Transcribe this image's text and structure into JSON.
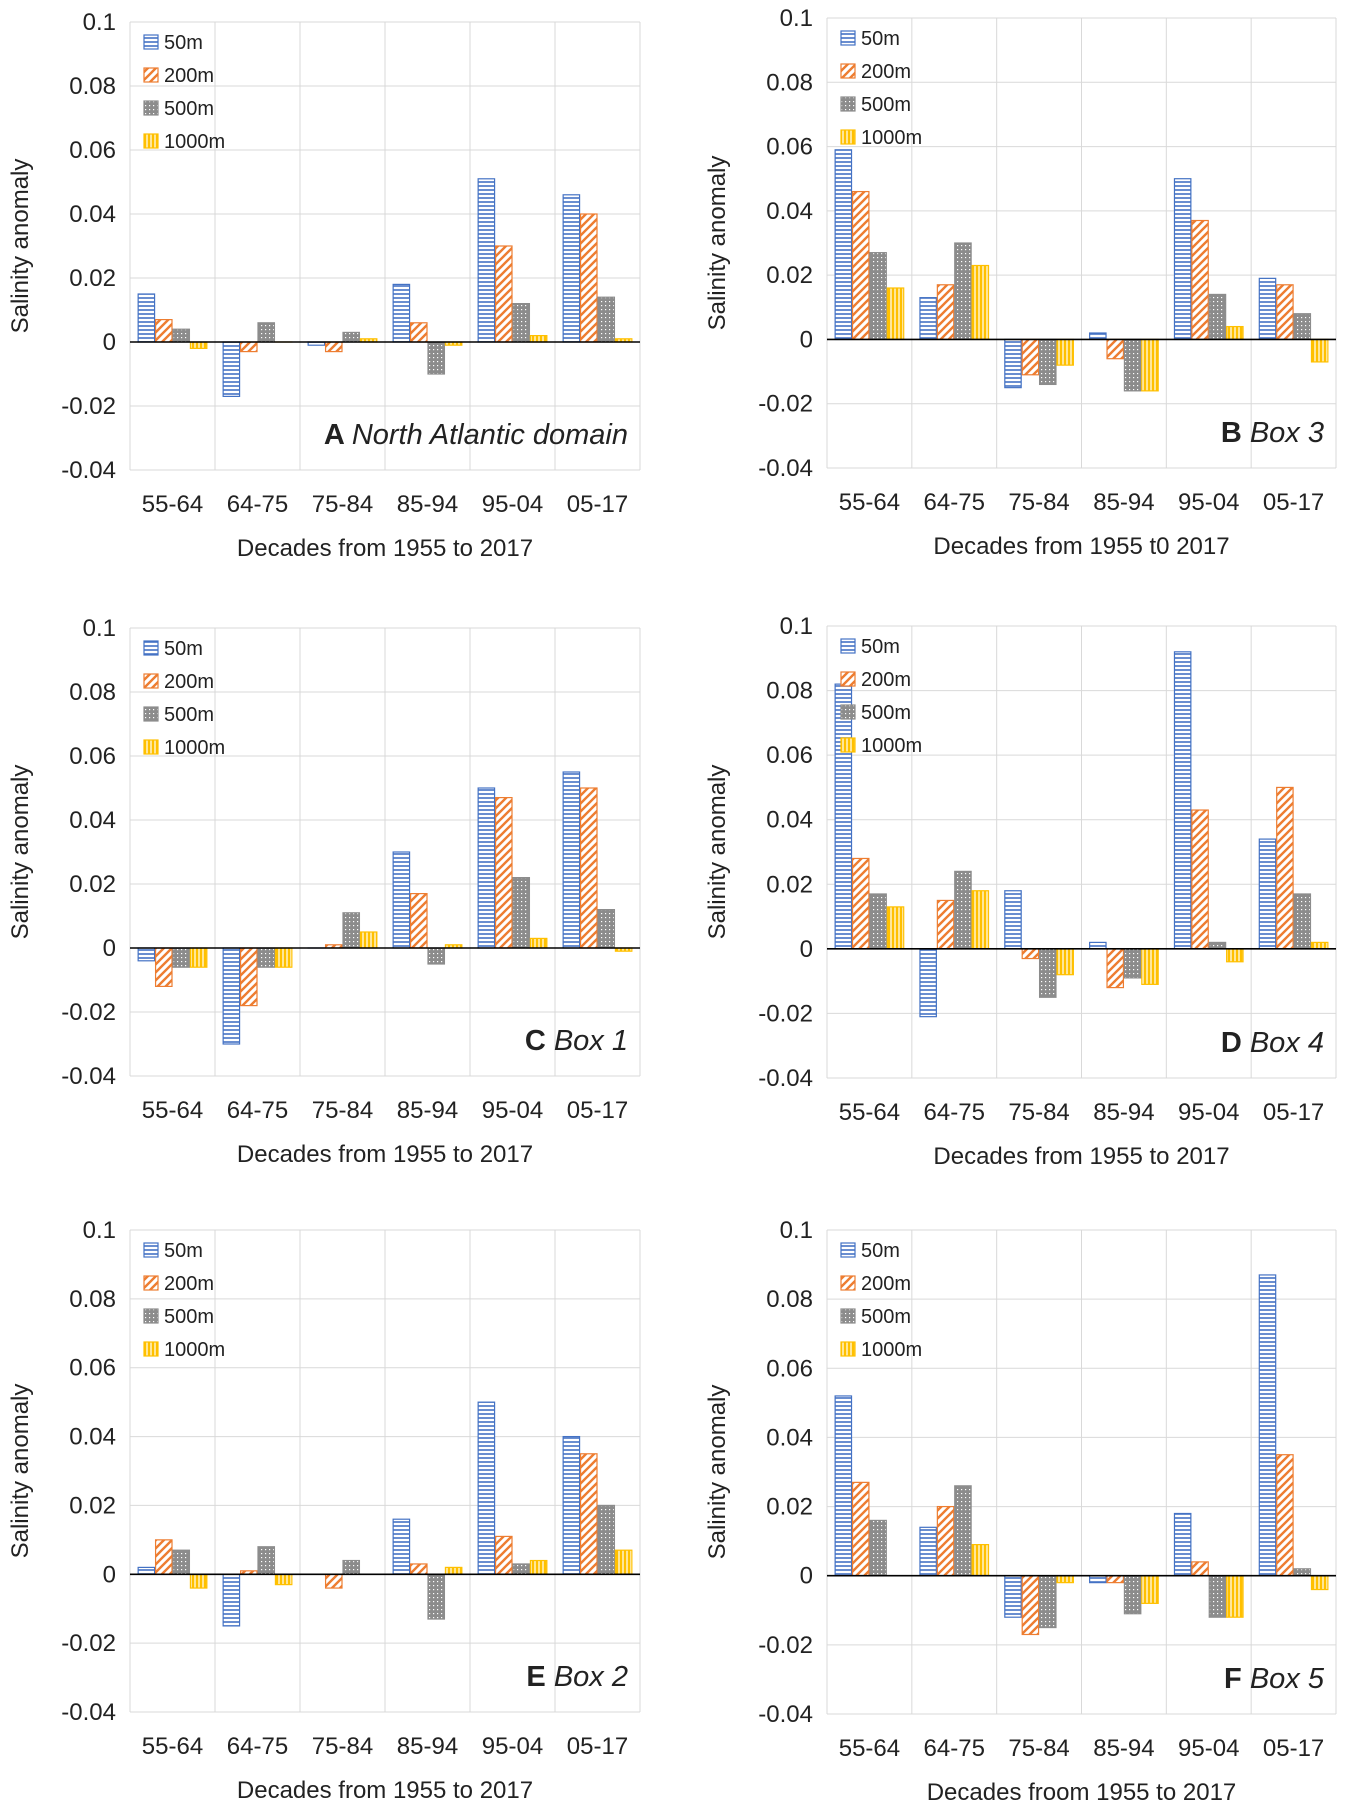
{
  "colors": {
    "series_50m": "#4472C4",
    "series_200m": "#ED7D31",
    "series_500m": "#8C8C8C",
    "series_1000m": "#FFC000",
    "grid": "#D9D9D9",
    "zero_line": "#000000"
  },
  "chart_data": [
    {
      "panel_letter": "A",
      "title": "North Atlantic domain",
      "type": "bar",
      "categories": [
        "55-64",
        "64-75",
        "75-84",
        "85-94",
        "95-04",
        "05-17"
      ],
      "xlabel": "Decades from 1955 to 2017",
      "ylabel": "Salinity anomaly",
      "ylim": [
        -0.04,
        0.1
      ],
      "yticks": [
        "0.1",
        "0.08",
        "0.06",
        "0.04",
        "0.02",
        "0",
        "-0.02",
        "-0.04"
      ],
      "legend": [
        "50m",
        "200m",
        "500m",
        "1000m"
      ],
      "series": [
        {
          "name": "50m",
          "values": [
            0.015,
            -0.017,
            -0.001,
            0.018,
            0.051,
            0.046
          ]
        },
        {
          "name": "200m",
          "values": [
            0.007,
            -0.003,
            -0.003,
            0.006,
            0.03,
            0.04
          ]
        },
        {
          "name": "500m",
          "values": [
            0.004,
            0.006,
            0.003,
            -0.01,
            0.012,
            0.014
          ]
        },
        {
          "name": "1000m",
          "values": [
            -0.002,
            0.0,
            0.001,
            -0.001,
            0.002,
            0.001
          ]
        }
      ]
    },
    {
      "panel_letter": "B",
      "title": "Box 3",
      "type": "bar",
      "categories": [
        "55-64",
        "64-75",
        "75-84",
        "85-94",
        "95-04",
        "05-17"
      ],
      "xlabel": "Decades from 1955 t0 2017",
      "ylabel": "Salinity anomaly",
      "ylim": [
        -0.04,
        0.1
      ],
      "yticks": [
        "0.1",
        "0.08",
        "0.06",
        "0.04",
        "0.02",
        "0",
        "-0.02",
        "-0.04"
      ],
      "legend": [
        "50m",
        "200m",
        "500m",
        "1000m"
      ],
      "series": [
        {
          "name": "50m",
          "values": [
            0.059,
            0.013,
            -0.015,
            0.002,
            0.05,
            0.019
          ]
        },
        {
          "name": "200m",
          "values": [
            0.046,
            0.017,
            -0.011,
            -0.006,
            0.037,
            0.017
          ]
        },
        {
          "name": "500m",
          "values": [
            0.027,
            0.03,
            -0.014,
            -0.016,
            0.014,
            0.008
          ]
        },
        {
          "name": "1000m",
          "values": [
            0.016,
            0.023,
            -0.008,
            -0.016,
            0.004,
            -0.007
          ]
        }
      ]
    },
    {
      "panel_letter": "C",
      "title": "Box 1",
      "type": "bar",
      "categories": [
        "55-64",
        "64-75",
        "75-84",
        "85-94",
        "95-04",
        "05-17"
      ],
      "xlabel": "Decades from 1955 to 2017",
      "ylabel": "Salinity anomaly",
      "ylim": [
        -0.04,
        0.1
      ],
      "yticks": [
        "0.1",
        "0.08",
        "0.06",
        "0.04",
        "0.02",
        "0",
        "-0.02",
        "-0.04"
      ],
      "legend": [
        "50m",
        "200m",
        "500m",
        "1000m"
      ],
      "series": [
        {
          "name": "50m",
          "values": [
            -0.004,
            -0.03,
            0.0,
            0.03,
            0.05,
            0.055
          ]
        },
        {
          "name": "200m",
          "values": [
            -0.012,
            -0.018,
            0.001,
            0.017,
            0.047,
            0.05
          ]
        },
        {
          "name": "500m",
          "values": [
            -0.006,
            -0.006,
            0.011,
            -0.005,
            0.022,
            0.012
          ]
        },
        {
          "name": "1000m",
          "values": [
            -0.006,
            -0.006,
            0.005,
            0.001,
            0.003,
            -0.001
          ]
        }
      ]
    },
    {
      "panel_letter": "D",
      "title": "Box 4",
      "type": "bar",
      "categories": [
        "55-64",
        "64-75",
        "75-84",
        "85-94",
        "95-04",
        "05-17"
      ],
      "xlabel": "Decades from 1955 to 2017",
      "ylabel": "Salinity anomaly",
      "ylim": [
        -0.04,
        0.1
      ],
      "yticks": [
        "0.1",
        "0.08",
        "0.06",
        "0.04",
        "0.02",
        "0",
        "-0.02",
        "-0.04"
      ],
      "legend": [
        "50m",
        "200m",
        "500m",
        "1000m"
      ],
      "series": [
        {
          "name": "50m",
          "values": [
            0.082,
            -0.021,
            0.018,
            0.002,
            0.092,
            0.034
          ]
        },
        {
          "name": "200m",
          "values": [
            0.028,
            0.015,
            -0.003,
            -0.012,
            0.043,
            0.05
          ]
        },
        {
          "name": "500m",
          "values": [
            0.017,
            0.024,
            -0.015,
            -0.009,
            0.002,
            0.017
          ]
        },
        {
          "name": "1000m",
          "values": [
            0.013,
            0.018,
            -0.008,
            -0.011,
            -0.004,
            0.002
          ]
        }
      ]
    },
    {
      "panel_letter": "E",
      "title": "Box 2",
      "type": "bar",
      "categories": [
        "55-64",
        "64-75",
        "75-84",
        "85-94",
        "95-04",
        "05-17"
      ],
      "xlabel": "Decades from 1955 to 2017",
      "ylabel": "Salinity anomaly",
      "ylim": [
        -0.04,
        0.1
      ],
      "yticks": [
        "0.1",
        "0.08",
        "0.06",
        "0.04",
        "0.02",
        "0",
        "-0.02",
        "-0.04"
      ],
      "legend": [
        "50m",
        "200m",
        "500m",
        "1000m"
      ],
      "series": [
        {
          "name": "50m",
          "values": [
            0.002,
            -0.015,
            0.0,
            0.016,
            0.05,
            0.04
          ]
        },
        {
          "name": "200m",
          "values": [
            0.01,
            0.001,
            -0.004,
            0.003,
            0.011,
            0.035
          ]
        },
        {
          "name": "500m",
          "values": [
            0.007,
            0.008,
            0.004,
            -0.013,
            0.003,
            0.02
          ]
        },
        {
          "name": "1000m",
          "values": [
            -0.004,
            -0.003,
            0.0,
            0.002,
            0.004,
            0.007
          ]
        }
      ]
    },
    {
      "panel_letter": "F",
      "title": "Box 5",
      "type": "bar",
      "categories": [
        "55-64",
        "64-75",
        "75-84",
        "85-94",
        "95-04",
        "05-17"
      ],
      "xlabel": "Decades froom 1955 to 2017",
      "ylabel": "Salinity anomaly",
      "ylim": [
        -0.04,
        0.1
      ],
      "yticks": [
        "0.1",
        "0.08",
        "0.06",
        "0.04",
        "0.02",
        "0",
        "-0.02",
        "-0.04"
      ],
      "legend": [
        "50m",
        "200m",
        "500m",
        "1000m"
      ],
      "series": [
        {
          "name": "50m",
          "values": [
            0.052,
            0.014,
            -0.012,
            -0.002,
            0.018,
            0.087
          ]
        },
        {
          "name": "200m",
          "values": [
            0.027,
            0.02,
            -0.017,
            -0.002,
            0.004,
            0.035
          ]
        },
        {
          "name": "500m",
          "values": [
            0.016,
            0.026,
            -0.015,
            -0.011,
            -0.012,
            0.002
          ]
        },
        {
          "name": "1000m",
          "values": [
            0.0,
            0.009,
            -0.002,
            -0.008,
            -0.012,
            -0.004
          ]
        }
      ]
    }
  ]
}
